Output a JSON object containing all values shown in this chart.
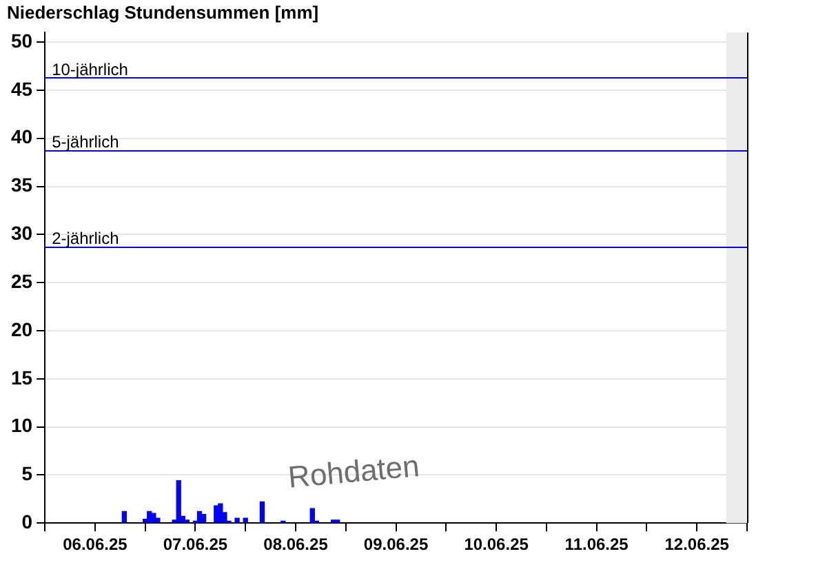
{
  "chart_data": {
    "type": "bar",
    "title": "Niederschlag Stundensummen [mm]",
    "x": [
      "--06-06T19:00",
      "--06-07T00:00",
      "--06-07T01:00",
      "--06-07T02:00",
      "--06-07T03:00",
      "--06-07T07:00",
      "--06-07T08:00",
      "--06-07T09:00",
      "--06-07T10:00",
      "--06-07T12:00",
      "--06-07T13:00",
      "--06-07T14:00",
      "--06-07T17:00",
      "--06-07T18:00",
      "--06-07T19:00",
      "--06-07T20:00",
      "--06-07T22:00",
      "--06-08T00:00",
      "--06-08T04:00",
      "--06-08T09:00",
      "--06-08T16:00",
      "--06-08T17:00",
      "--06-08T21:00",
      "--06-08T22:00"
    ],
    "values": [
      1.2,
      0.4,
      1.2,
      1.0,
      0.5,
      0.3,
      4.4,
      0.7,
      0.3,
      0.2,
      1.2,
      0.9,
      1.8,
      2.0,
      1.1,
      0.2,
      0.5,
      0.5,
      2.2,
      0.2,
      1.5,
      0.2,
      0.3,
      0.3
    ],
    "color": "#0000ff",
    "xlim": [
      "--06-06T00:00",
      "--06-13T00:00"
    ],
    "xticks": [
      {
        "value": "--06-06T00:00",
        "label": null
      },
      {
        "value": "--06-06T12:00",
        "label": "06.06.25"
      },
      {
        "value": "--06-07T00:00",
        "label": null
      },
      {
        "value": "--06-07T12:00",
        "label": "07.06.25"
      },
      {
        "value": "--06-08T00:00",
        "label": null
      },
      {
        "value": "--06-08T12:00",
        "label": "08.06.25"
      },
      {
        "value": "--06-09T00:00",
        "label": null
      },
      {
        "value": "--06-09T12:00",
        "label": "09.06.25"
      },
      {
        "value": "--06-10T00:00",
        "label": null
      },
      {
        "value": "--06-10T12:00",
        "label": "10.06.25"
      },
      {
        "value": "--06-11T00:00",
        "label": null
      },
      {
        "value": "--06-11T12:00",
        "label": "11.06.25"
      },
      {
        "value": "--06-12T00:00",
        "label": null
      },
      {
        "value": "--06-12T12:00",
        "label": "12.06.25"
      },
      {
        "value": "--06-13T00:00",
        "label": null
      }
    ],
    "ylim": [
      0,
      51
    ],
    "yticks": [
      0,
      5,
      10,
      15,
      20,
      25,
      30,
      35,
      40,
      45,
      50
    ],
    "grid": "y",
    "legend": false,
    "ref_lines": [
      {
        "axis": "y",
        "value": 46.3,
        "label": "10-jährlich",
        "color": "#0000ff"
      },
      {
        "axis": "y",
        "value": 38.8,
        "label": "5-jährlich",
        "color": "#0000ff"
      },
      {
        "axis": "y",
        "value": 28.8,
        "label": "2-jährlich",
        "color": "#0000ff"
      }
    ],
    "bands": [
      {
        "axis": "x",
        "from": "--06-12T19:00",
        "to": "--06-13T00:00",
        "color": "#ebebeb"
      }
    ],
    "annotations": [
      "Rohdaten"
    ]
  }
}
